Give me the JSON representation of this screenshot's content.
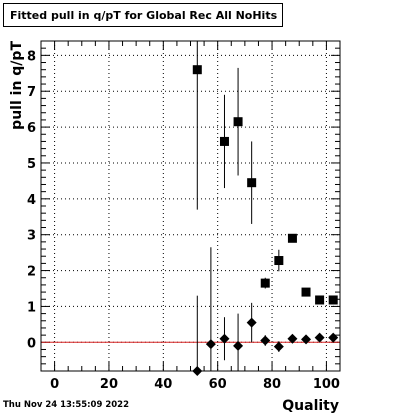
{
  "chart_data": {
    "type": "scatter",
    "title": "Fitted pull in q/pT for Global Rec All NoHits",
    "xlabel": "Quality",
    "ylabel": "pull in q/pT",
    "xlim": [
      -5,
      105
    ],
    "ylim": [
      -0.8,
      8.4
    ],
    "xticks": [
      0,
      20,
      40,
      60,
      80,
      100
    ],
    "yticks": [
      0,
      1,
      2,
      3,
      4,
      5,
      6,
      7,
      8
    ],
    "grid": true,
    "reference_line": {
      "y": 0,
      "color": "#d62020"
    },
    "series": [
      {
        "marker": "square",
        "points": [
          {
            "x": 52.5,
            "y": 7.6,
            "yerr": 3.9
          },
          {
            "x": 62.5,
            "y": 5.6,
            "yerr": 1.3
          },
          {
            "x": 67.5,
            "y": 6.15,
            "yerr": 1.5
          },
          {
            "x": 72.5,
            "y": 4.45,
            "yerr": 1.15
          },
          {
            "x": 77.5,
            "y": 1.65,
            "yerr": 0.15
          },
          {
            "x": 82.5,
            "y": 2.28,
            "yerr": 0.3
          },
          {
            "x": 87.5,
            "y": 2.9,
            "yerr": 0.1
          },
          {
            "x": 92.5,
            "y": 1.4,
            "yerr": 0.08
          },
          {
            "x": 97.5,
            "y": 1.18,
            "yerr": 0.08
          },
          {
            "x": 102.5,
            "y": 1.18,
            "yerr": 0.07
          }
        ]
      },
      {
        "marker": "diamond",
        "points": [
          {
            "x": 52.5,
            "y": -0.8,
            "yerr": 2.1
          },
          {
            "x": 57.5,
            "y": -0.05,
            "yerr": 2.7
          },
          {
            "x": 62.5,
            "y": 0.1,
            "yerr": 0.6
          },
          {
            "x": 67.5,
            "y": -0.1,
            "yerr": 0.9
          },
          {
            "x": 72.5,
            "y": 0.55,
            "yerr": 0.55
          },
          {
            "x": 77.5,
            "y": 0.05,
            "yerr": 0.15
          },
          {
            "x": 82.5,
            "y": -0.12,
            "yerr": 0.15
          },
          {
            "x": 87.5,
            "y": 0.1,
            "yerr": 0.05
          },
          {
            "x": 92.5,
            "y": 0.08,
            "yerr": 0.05
          },
          {
            "x": 97.5,
            "y": 0.13,
            "yerr": 0.05
          },
          {
            "x": 102.5,
            "y": 0.13,
            "yerr": 0.05
          }
        ]
      }
    ]
  },
  "timestamp": "Thu Nov 24 13:55:09 2022"
}
